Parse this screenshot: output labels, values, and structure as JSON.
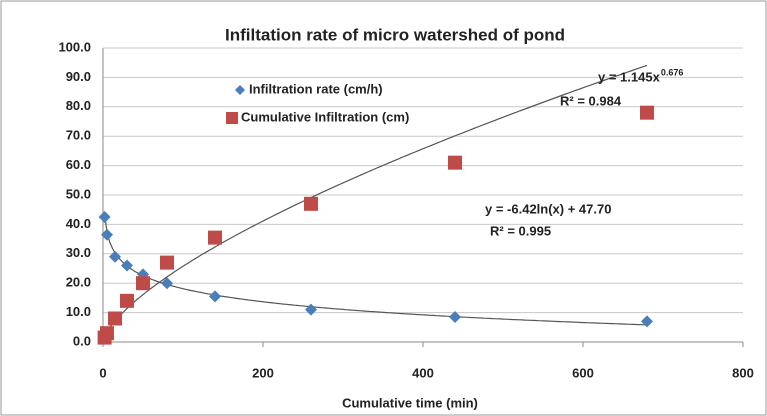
{
  "chart_data": {
    "type": "scatter",
    "title": "Infiltation rate of micro watershed of pond",
    "x_label": "Cumulative time (min)",
    "xlim": [
      0,
      800
    ],
    "xticks": [
      0,
      200,
      400,
      600,
      800
    ],
    "ylim": [
      0,
      100
    ],
    "yticks": [
      {
        "value": 0,
        "label": "0.0"
      },
      {
        "value": 10,
        "label": "10.0"
      },
      {
        "value": 20,
        "label": "20.0"
      },
      {
        "value": 30,
        "label": "30.0"
      },
      {
        "value": 40,
        "label": "40.0"
      },
      {
        "value": 50,
        "label": "50.0"
      },
      {
        "value": 60,
        "label": "60.0"
      },
      {
        "value": 70,
        "label": "70.0"
      },
      {
        "value": 80,
        "label": "80.0"
      },
      {
        "value": 90,
        "label": "90.0"
      },
      {
        "value": 100,
        "label": "100.0"
      }
    ],
    "grid": true,
    "series": [
      {
        "name": "Infiltration rate (cm/h)",
        "color": "#4a7ebb",
        "marker": "diamond",
        "x": [
          2,
          5,
          15,
          30,
          50,
          80,
          140,
          260,
          440,
          680
        ],
        "values": [
          42.5,
          36.5,
          29,
          26,
          23,
          20,
          15.5,
          11,
          8.5,
          7
        ],
        "trendline": {
          "kind": "log",
          "a": -6.42,
          "b": 47.7,
          "equation": "y = -6.42ln(x) + 47.70",
          "r2": "R² = 0.995"
        }
      },
      {
        "name": "Cumulative Infiltration (cm)",
        "color": "#be4b48",
        "marker": "square",
        "x": [
          2,
          5,
          15,
          30,
          50,
          80,
          140,
          260,
          440,
          680
        ],
        "values": [
          1.5,
          3,
          8,
          14,
          20,
          27,
          35.5,
          47,
          61,
          78
        ],
        "trendline": {
          "kind": "power",
          "a": 1.145,
          "b": 0.676,
          "equation": "y = 1.145x",
          "exponent": "0.676",
          "r2": "R² = 0.984"
        }
      }
    ]
  }
}
